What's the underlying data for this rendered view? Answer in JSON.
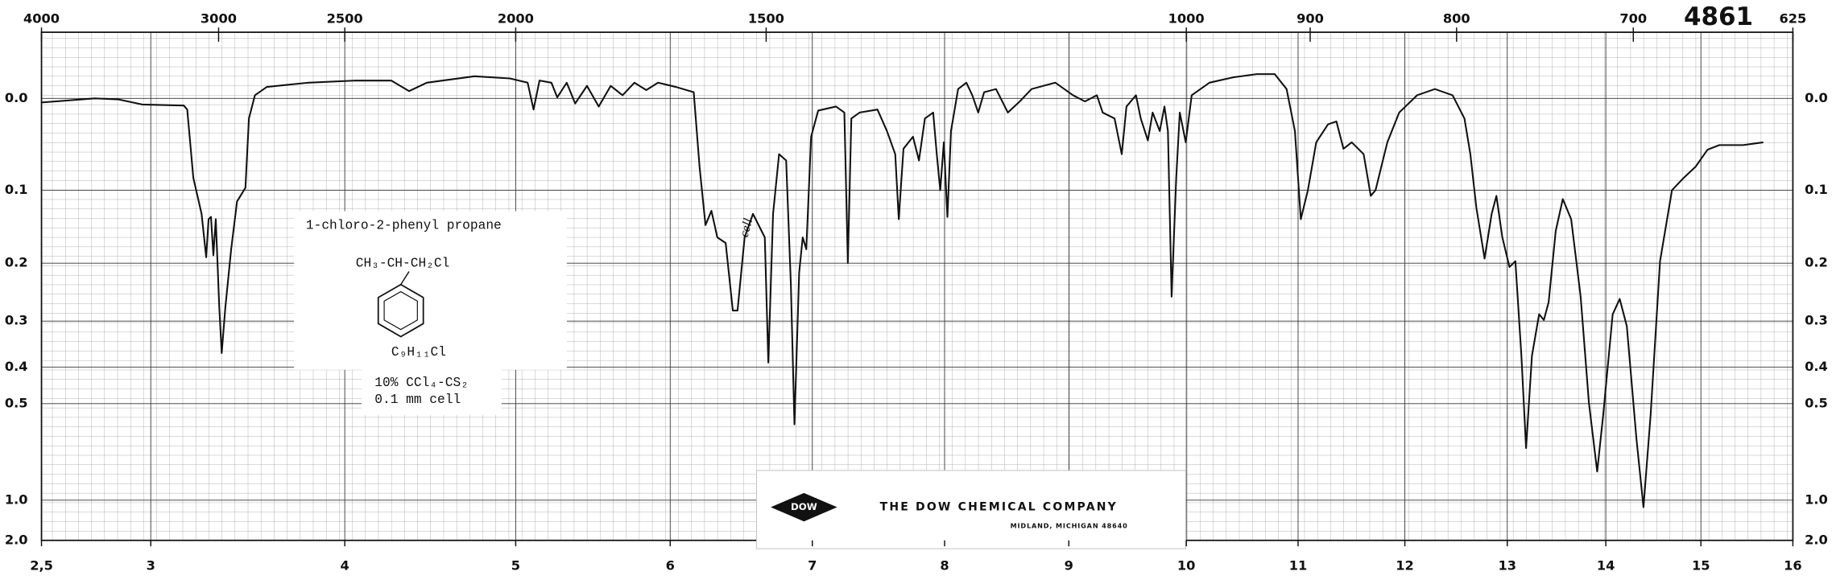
{
  "chart_data": {
    "type": "line",
    "annotations": {
      "compound": "1-chloro-2-phenyl propane",
      "structure": "CH₃-CH-CH₂Cl",
      "formula": "C₉H₁₁Cl",
      "solvent": "10% CCl₄-CS₂",
      "cell": "0.1 mm cell",
      "handwritten": "cell",
      "logo": "DOW",
      "company": "THE DOW CHEMICAL COMPANY",
      "address": "MIDLAND, MICHIGAN 48640",
      "spectrum_number": "4861"
    },
    "xscale": "sqrt",
    "yscale": "absorbance",
    "grid": true,
    "color": "#111111",
    "xlim": [
      2.5,
      16
    ],
    "xticks": [
      {
        "value": 2.5,
        "label": "2,5"
      },
      3,
      4,
      5,
      6,
      7,
      8,
      9,
      10,
      11,
      12,
      13,
      14,
      15,
      16
    ],
    "x2ticks": [
      4000,
      3000,
      2500,
      2000,
      1500,
      1000,
      900,
      800,
      700,
      625
    ],
    "ylim": [
      -0.06,
      2
    ],
    "yticks": [
      {
        "value": 0,
        "label": "0.0"
      },
      0.1,
      0.2,
      0.3,
      0.4,
      0.5,
      {
        "value": 1,
        "label": "1.0"
      },
      {
        "value": 2,
        "label": "2.0"
      }
    ],
    "x": [
      2.5,
      2.738,
      2.848,
      2.959,
      3.16,
      3.177,
      3.207,
      3.248,
      3.271,
      3.283,
      3.295,
      3.307,
      3.319,
      3.337,
      3.349,
      3.367,
      3.397,
      3.427,
      3.47,
      3.488,
      3.519,
      3.581,
      3.801,
      4.061,
      4.261,
      4.363,
      4.466,
      4.748,
      4.964,
      5.074,
      5.111,
      5.148,
      5.223,
      5.26,
      5.32,
      5.374,
      5.45,
      5.526,
      5.604,
      5.682,
      5.76,
      5.839,
      5.918,
      6.038,
      6.16,
      6.2,
      6.241,
      6.282,
      6.323,
      6.381,
      6.431,
      6.464,
      6.514,
      6.573,
      6.657,
      6.682,
      6.716,
      6.759,
      6.81,
      6.844,
      6.87,
      6.904,
      6.93,
      6.956,
      6.991,
      7.043,
      7.174,
      7.236,
      7.262,
      7.288,
      7.35,
      7.484,
      7.556,
      7.619,
      7.646,
      7.682,
      7.755,
      7.801,
      7.847,
      7.911,
      7.939,
      7.966,
      7.994,
      8.022,
      8.05,
      8.106,
      8.171,
      8.218,
      8.265,
      8.312,
      8.407,
      8.502,
      8.598,
      8.694,
      8.889,
      9.035,
      9.134,
      9.234,
      9.283,
      9.383,
      9.444,
      9.484,
      9.565,
      9.606,
      9.667,
      9.708,
      9.769,
      9.81,
      9.84,
      9.872,
      9.912,
      9.943,
      9.995,
      10.047,
      10.203,
      10.414,
      10.626,
      10.787,
      10.895,
      10.971,
      11.025,
      11.09,
      11.167,
      11.276,
      11.354,
      11.42,
      11.497,
      11.609,
      11.676,
      11.721,
      11.833,
      11.946,
      12.117,
      12.289,
      12.461,
      12.577,
      12.635,
      12.694,
      12.775,
      12.845,
      12.892,
      12.951,
      13.022,
      13.081,
      13.141,
      13.188,
      13.247,
      13.319,
      13.367,
      13.415,
      13.487,
      13.559,
      13.644,
      13.741,
      13.826,
      13.911,
      13.973,
      14.071,
      14.144,
      14.218,
      14.318,
      14.392,
      14.467,
      14.566,
      14.692,
      14.818,
      14.944,
      15.071,
      15.198,
      15.455,
      15.675
    ],
    "values": [
      0.004,
      0.0,
      0.001,
      0.006,
      0.007,
      0.011,
      0.085,
      0.13,
      0.191,
      0.137,
      0.134,
      0.188,
      0.137,
      0.276,
      0.367,
      0.276,
      0.179,
      0.114,
      0.097,
      0.02,
      -0.003,
      -0.011,
      -0.015,
      -0.017,
      -0.017,
      -0.007,
      -0.015,
      -0.021,
      -0.019,
      -0.015,
      0.011,
      -0.017,
      -0.015,
      -0.001,
      -0.015,
      0.005,
      -0.012,
      0.008,
      -0.012,
      -0.003,
      -0.015,
      -0.008,
      -0.015,
      -0.011,
      -0.006,
      0.072,
      0.145,
      0.126,
      0.162,
      0.17,
      0.28,
      0.28,
      0.162,
      0.13,
      0.162,
      0.389,
      0.13,
      0.058,
      0.065,
      0.234,
      0.569,
      0.215,
      0.162,
      0.179,
      0.039,
      0.012,
      0.008,
      0.014,
      0.2,
      0.02,
      0.014,
      0.011,
      0.033,
      0.058,
      0.137,
      0.052,
      0.039,
      0.065,
      0.02,
      0.014,
      0.058,
      0.1,
      0.045,
      0.134,
      0.033,
      -0.009,
      -0.015,
      -0.003,
      0.014,
      -0.006,
      -0.009,
      0.014,
      0.003,
      -0.009,
      -0.015,
      -0.003,
      0.003,
      -0.003,
      0.014,
      0.02,
      0.058,
      0.008,
      -0.003,
      0.02,
      0.043,
      0.014,
      0.033,
      0.008,
      0.033,
      0.255,
      0.085,
      0.014,
      0.045,
      -0.003,
      -0.015,
      -0.02,
      -0.023,
      -0.023,
      -0.009,
      0.033,
      0.137,
      0.1,
      0.045,
      0.026,
      0.023,
      0.052,
      0.045,
      0.058,
      0.107,
      0.1,
      0.045,
      0.014,
      -0.003,
      -0.009,
      -0.003,
      0.02,
      0.058,
      0.122,
      0.193,
      0.13,
      0.107,
      0.162,
      0.206,
      0.197,
      0.373,
      0.664,
      0.373,
      0.287,
      0.298,
      0.265,
      0.153,
      0.111,
      0.137,
      0.255,
      0.498,
      0.785,
      0.536,
      0.287,
      0.259,
      0.31,
      0.623,
      1.074,
      0.536,
      0.197,
      0.1,
      0.085,
      0.072,
      0.053,
      0.048,
      0.048,
      0.045
    ]
  }
}
